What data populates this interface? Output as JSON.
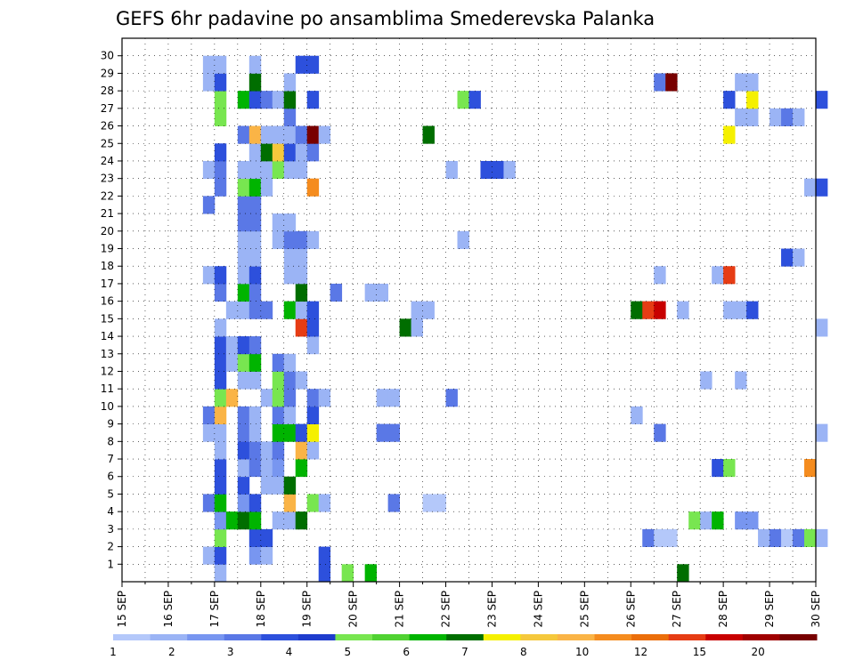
{
  "chart_data": {
    "type": "heatmap",
    "title": "GEFS 6hr padavine po ansamblima Smederevska Palanka",
    "x_labels": [
      "15 SEP",
      "16 SEP",
      "17 SEP",
      "18 SEP",
      "19 SEP",
      "20 SEP",
      "21 SEP",
      "22 SEP",
      "23 SEP",
      "24 SEP",
      "25 SEP",
      "26 SEP",
      "27 SEP",
      "28 SEP",
      "29 SEP",
      "30 SEP"
    ],
    "y_labels": [
      "1",
      "2",
      "3",
      "4",
      "5",
      "6",
      "7",
      "8",
      "9",
      "10",
      "11",
      "12",
      "13",
      "14",
      "15",
      "16",
      "17",
      "18",
      "19",
      "20",
      "21",
      "22",
      "23",
      "24",
      "25",
      "26",
      "27",
      "28",
      "29",
      "30"
    ],
    "color_scale": {
      "thresholds": [
        "1",
        "2",
        "3",
        "4",
        "5",
        "6",
        "7",
        "8",
        "10",
        "12",
        "15",
        "20"
      ],
      "colors": [
        "#b4c8fa",
        "#9bb4f5",
        "#7896f0",
        "#5a78e6",
        "#2d50dc",
        "#1e3ccd",
        "#78e650",
        "#50d232",
        "#00b400",
        "#006e00",
        "#f5f000",
        "#f5c83c",
        "#fab446",
        "#f58c1e",
        "#eb6e0a",
        "#e63c14",
        "#c80000",
        "#a00000",
        "#780000"
      ]
    },
    "grid": true,
    "cells": [
      {
        "ens": 0,
        "x": 8,
        "c": 1
      },
      {
        "ens": 0,
        "x": 17,
        "c": 4
      },
      {
        "ens": 0,
        "x": 19,
        "c": 6
      },
      {
        "ens": 0,
        "x": 21,
        "c": 8
      },
      {
        "ens": 0,
        "x": 48,
        "c": 9
      },
      {
        "ens": 1,
        "x": 7,
        "c": 1
      },
      {
        "ens": 1,
        "x": 8,
        "c": 4
      },
      {
        "ens": 1,
        "x": 11,
        "c": 2
      },
      {
        "ens": 1,
        "x": 12,
        "c": 1
      },
      {
        "ens": 1,
        "x": 17,
        "c": 4
      },
      {
        "ens": 2,
        "x": 8,
        "c": 6
      },
      {
        "ens": 2,
        "x": 11,
        "c": 4
      },
      {
        "ens": 2,
        "x": 12,
        "c": 4
      },
      {
        "ens": 2,
        "x": 45,
        "c": 3
      },
      {
        "ens": 2,
        "x": 46,
        "c": 0
      },
      {
        "ens": 2,
        "x": 47,
        "c": 0
      },
      {
        "ens": 2,
        "x": 55,
        "c": 1
      },
      {
        "ens": 2,
        "x": 56,
        "c": 3
      },
      {
        "ens": 2,
        "x": 57,
        "c": 0
      },
      {
        "ens": 2,
        "x": 58,
        "c": 3
      },
      {
        "ens": 2,
        "x": 59,
        "c": 6
      },
      {
        "ens": 2,
        "x": 60,
        "c": 1
      },
      {
        "ens": 3,
        "x": 8,
        "c": 2
      },
      {
        "ens": 3,
        "x": 9,
        "c": 8
      },
      {
        "ens": 3,
        "x": 10,
        "c": 9
      },
      {
        "ens": 3,
        "x": 11,
        "c": 8
      },
      {
        "ens": 3,
        "x": 13,
        "c": 1
      },
      {
        "ens": 3,
        "x": 14,
        "c": 1
      },
      {
        "ens": 3,
        "x": 15,
        "c": 9
      },
      {
        "ens": 3,
        "x": 49,
        "c": 6
      },
      {
        "ens": 3,
        "x": 50,
        "c": 1
      },
      {
        "ens": 3,
        "x": 51,
        "c": 8
      },
      {
        "ens": 3,
        "x": 53,
        "c": 2
      },
      {
        "ens": 3,
        "x": 54,
        "c": 2
      },
      {
        "ens": 4,
        "x": 7,
        "c": 3
      },
      {
        "ens": 4,
        "x": 8,
        "c": 8
      },
      {
        "ens": 4,
        "x": 10,
        "c": 2
      },
      {
        "ens": 4,
        "x": 11,
        "c": 4
      },
      {
        "ens": 4,
        "x": 14,
        "c": 12
      },
      {
        "ens": 4,
        "x": 16,
        "c": 6
      },
      {
        "ens": 4,
        "x": 17,
        "c": 1
      },
      {
        "ens": 4,
        "x": 23,
        "c": 3
      },
      {
        "ens": 4,
        "x": 26,
        "c": 0
      },
      {
        "ens": 4,
        "x": 27,
        "c": 0
      },
      {
        "ens": 5,
        "x": 8,
        "c": 4
      },
      {
        "ens": 5,
        "x": 10,
        "c": 4
      },
      {
        "ens": 5,
        "x": 12,
        "c": 1
      },
      {
        "ens": 5,
        "x": 13,
        "c": 1
      },
      {
        "ens": 5,
        "x": 14,
        "c": 9
      },
      {
        "ens": 6,
        "x": 8,
        "c": 4
      },
      {
        "ens": 6,
        "x": 10,
        "c": 1
      },
      {
        "ens": 6,
        "x": 11,
        "c": 3
      },
      {
        "ens": 6,
        "x": 12,
        "c": 1
      },
      {
        "ens": 6,
        "x": 13,
        "c": 2
      },
      {
        "ens": 6,
        "x": 15,
        "c": 8
      },
      {
        "ens": 6,
        "x": 51,
        "c": 4
      },
      {
        "ens": 6,
        "x": 52,
        "c": 6
      },
      {
        "ens": 6,
        "x": 59,
        "c": 13
      },
      {
        "ens": 7,
        "x": 8,
        "c": 1
      },
      {
        "ens": 7,
        "x": 10,
        "c": 4
      },
      {
        "ens": 7,
        "x": 11,
        "c": 3
      },
      {
        "ens": 7,
        "x": 12,
        "c": 1
      },
      {
        "ens": 7,
        "x": 13,
        "c": 3
      },
      {
        "ens": 7,
        "x": 15,
        "c": 12
      },
      {
        "ens": 7,
        "x": 16,
        "c": 1
      },
      {
        "ens": 8,
        "x": 7,
        "c": 1
      },
      {
        "ens": 8,
        "x": 8,
        "c": 1
      },
      {
        "ens": 8,
        "x": 10,
        "c": 3
      },
      {
        "ens": 8,
        "x": 11,
        "c": 1
      },
      {
        "ens": 8,
        "x": 13,
        "c": 8
      },
      {
        "ens": 8,
        "x": 14,
        "c": 8
      },
      {
        "ens": 8,
        "x": 15,
        "c": 4
      },
      {
        "ens": 8,
        "x": 16,
        "c": 10
      },
      {
        "ens": 8,
        "x": 22,
        "c": 3
      },
      {
        "ens": 8,
        "x": 23,
        "c": 3
      },
      {
        "ens": 8,
        "x": 46,
        "c": 3
      },
      {
        "ens": 8,
        "x": 60,
        "c": 1
      },
      {
        "ens": 9,
        "x": 7,
        "c": 3
      },
      {
        "ens": 9,
        "x": 8,
        "c": 12
      },
      {
        "ens": 9,
        "x": 10,
        "c": 3
      },
      {
        "ens": 9,
        "x": 11,
        "c": 1
      },
      {
        "ens": 9,
        "x": 13,
        "c": 3
      },
      {
        "ens": 9,
        "x": 14,
        "c": 1
      },
      {
        "ens": 9,
        "x": 16,
        "c": 4
      },
      {
        "ens": 9,
        "x": 44,
        "c": 1
      },
      {
        "ens": 10,
        "x": 8,
        "c": 6
      },
      {
        "ens": 10,
        "x": 9,
        "c": 12
      },
      {
        "ens": 10,
        "x": 12,
        "c": 1
      },
      {
        "ens": 10,
        "x": 13,
        "c": 6
      },
      {
        "ens": 10,
        "x": 14,
        "c": 3
      },
      {
        "ens": 10,
        "x": 16,
        "c": 3
      },
      {
        "ens": 10,
        "x": 17,
        "c": 1
      },
      {
        "ens": 10,
        "x": 22,
        "c": 1
      },
      {
        "ens": 10,
        "x": 23,
        "c": 1
      },
      {
        "ens": 10,
        "x": 28,
        "c": 3
      },
      {
        "ens": 11,
        "x": 8,
        "c": 4
      },
      {
        "ens": 11,
        "x": 10,
        "c": 1
      },
      {
        "ens": 11,
        "x": 11,
        "c": 1
      },
      {
        "ens": 11,
        "x": 13,
        "c": 6
      },
      {
        "ens": 11,
        "x": 14,
        "c": 3
      },
      {
        "ens": 11,
        "x": 15,
        "c": 1
      },
      {
        "ens": 11,
        "x": 50,
        "c": 1
      },
      {
        "ens": 11,
        "x": 53,
        "c": 1
      },
      {
        "ens": 12,
        "x": 8,
        "c": 4
      },
      {
        "ens": 12,
        "x": 9,
        "c": 1
      },
      {
        "ens": 12,
        "x": 10,
        "c": 6
      },
      {
        "ens": 12,
        "x": 11,
        "c": 8
      },
      {
        "ens": 12,
        "x": 13,
        "c": 3
      },
      {
        "ens": 12,
        "x": 14,
        "c": 1
      },
      {
        "ens": 13,
        "x": 8,
        "c": 4
      },
      {
        "ens": 13,
        "x": 9,
        "c": 1
      },
      {
        "ens": 13,
        "x": 10,
        "c": 4
      },
      {
        "ens": 13,
        "x": 11,
        "c": 3
      },
      {
        "ens": 13,
        "x": 16,
        "c": 1
      },
      {
        "ens": 14,
        "x": 8,
        "c": 1
      },
      {
        "ens": 14,
        "x": 15,
        "c": 15
      },
      {
        "ens": 14,
        "x": 16,
        "c": 4
      },
      {
        "ens": 14,
        "x": 24,
        "c": 9
      },
      {
        "ens": 14,
        "x": 25,
        "c": 1
      },
      {
        "ens": 14,
        "x": 60,
        "c": 1
      },
      {
        "ens": 15,
        "x": 9,
        "c": 1
      },
      {
        "ens": 15,
        "x": 10,
        "c": 1
      },
      {
        "ens": 15,
        "x": 11,
        "c": 3
      },
      {
        "ens": 15,
        "x": 12,
        "c": 3
      },
      {
        "ens": 15,
        "x": 14,
        "c": 8
      },
      {
        "ens": 15,
        "x": 15,
        "c": 1
      },
      {
        "ens": 15,
        "x": 16,
        "c": 4
      },
      {
        "ens": 15,
        "x": 25,
        "c": 1
      },
      {
        "ens": 15,
        "x": 26,
        "c": 1
      },
      {
        "ens": 15,
        "x": 44,
        "c": 9
      },
      {
        "ens": 15,
        "x": 45,
        "c": 15
      },
      {
        "ens": 15,
        "x": 46,
        "c": 16
      },
      {
        "ens": 15,
        "x": 48,
        "c": 1
      },
      {
        "ens": 15,
        "x": 52,
        "c": 1
      },
      {
        "ens": 15,
        "x": 53,
        "c": 1
      },
      {
        "ens": 15,
        "x": 54,
        "c": 4
      },
      {
        "ens": 16,
        "x": 8,
        "c": 3
      },
      {
        "ens": 16,
        "x": 10,
        "c": 8
      },
      {
        "ens": 16,
        "x": 11,
        "c": 3
      },
      {
        "ens": 16,
        "x": 15,
        "c": 9
      },
      {
        "ens": 16,
        "x": 18,
        "c": 3
      },
      {
        "ens": 16,
        "x": 21,
        "c": 1
      },
      {
        "ens": 16,
        "x": 22,
        "c": 1
      },
      {
        "ens": 17,
        "x": 7,
        "c": 1
      },
      {
        "ens": 17,
        "x": 8,
        "c": 4
      },
      {
        "ens": 17,
        "x": 10,
        "c": 1
      },
      {
        "ens": 17,
        "x": 11,
        "c": 4
      },
      {
        "ens": 17,
        "x": 14,
        "c": 1
      },
      {
        "ens": 17,
        "x": 15,
        "c": 1
      },
      {
        "ens": 17,
        "x": 46,
        "c": 1
      },
      {
        "ens": 17,
        "x": 51,
        "c": 1
      },
      {
        "ens": 17,
        "x": 52,
        "c": 15
      },
      {
        "ens": 18,
        "x": 10,
        "c": 1
      },
      {
        "ens": 18,
        "x": 11,
        "c": 1
      },
      {
        "ens": 18,
        "x": 14,
        "c": 1
      },
      {
        "ens": 18,
        "x": 15,
        "c": 1
      },
      {
        "ens": 18,
        "x": 57,
        "c": 4
      },
      {
        "ens": 18,
        "x": 58,
        "c": 1
      },
      {
        "ens": 19,
        "x": 10,
        "c": 1
      },
      {
        "ens": 19,
        "x": 11,
        "c": 1
      },
      {
        "ens": 19,
        "x": 13,
        "c": 1
      },
      {
        "ens": 19,
        "x": 14,
        "c": 3
      },
      {
        "ens": 19,
        "x": 15,
        "c": 3
      },
      {
        "ens": 19,
        "x": 16,
        "c": 1
      },
      {
        "ens": 19,
        "x": 29,
        "c": 1
      },
      {
        "ens": 20,
        "x": 10,
        "c": 3
      },
      {
        "ens": 20,
        "x": 11,
        "c": 3
      },
      {
        "ens": 20,
        "x": 13,
        "c": 1
      },
      {
        "ens": 20,
        "x": 14,
        "c": 1
      },
      {
        "ens": 21,
        "x": 7,
        "c": 3
      },
      {
        "ens": 21,
        "x": 10,
        "c": 3
      },
      {
        "ens": 21,
        "x": 11,
        "c": 3
      },
      {
        "ens": 22,
        "x": 8,
        "c": 3
      },
      {
        "ens": 22,
        "x": 10,
        "c": 6
      },
      {
        "ens": 22,
        "x": 11,
        "c": 8
      },
      {
        "ens": 22,
        "x": 12,
        "c": 1
      },
      {
        "ens": 22,
        "x": 16,
        "c": 13
      },
      {
        "ens": 22,
        "x": 59,
        "c": 1
      },
      {
        "ens": 22,
        "x": 60,
        "c": 4
      },
      {
        "ens": 23,
        "x": 7,
        "c": 1
      },
      {
        "ens": 23,
        "x": 8,
        "c": 3
      },
      {
        "ens": 23,
        "x": 10,
        "c": 1
      },
      {
        "ens": 23,
        "x": 11,
        "c": 1
      },
      {
        "ens": 23,
        "x": 12,
        "c": 1
      },
      {
        "ens": 23,
        "x": 13,
        "c": 6
      },
      {
        "ens": 23,
        "x": 14,
        "c": 1
      },
      {
        "ens": 23,
        "x": 15,
        "c": 1
      },
      {
        "ens": 23,
        "x": 28,
        "c": 1
      },
      {
        "ens": 23,
        "x": 31,
        "c": 4
      },
      {
        "ens": 23,
        "x": 32,
        "c": 4
      },
      {
        "ens": 23,
        "x": 33,
        "c": 1
      },
      {
        "ens": 24,
        "x": 8,
        "c": 4
      },
      {
        "ens": 24,
        "x": 11,
        "c": 1
      },
      {
        "ens": 24,
        "x": 12,
        "c": 9
      },
      {
        "ens": 24,
        "x": 13,
        "c": 11
      },
      {
        "ens": 24,
        "x": 14,
        "c": 4
      },
      {
        "ens": 24,
        "x": 15,
        "c": 1
      },
      {
        "ens": 24,
        "x": 16,
        "c": 3
      },
      {
        "ens": 25,
        "x": 10,
        "c": 3
      },
      {
        "ens": 25,
        "x": 11,
        "c": 12
      },
      {
        "ens": 25,
        "x": 12,
        "c": 1
      },
      {
        "ens": 25,
        "x": 13,
        "c": 1
      },
      {
        "ens": 25,
        "x": 14,
        "c": 1
      },
      {
        "ens": 25,
        "x": 15,
        "c": 3
      },
      {
        "ens": 25,
        "x": 16,
        "c": 18
      },
      {
        "ens": 25,
        "x": 17,
        "c": 1
      },
      {
        "ens": 25,
        "x": 26,
        "c": 9
      },
      {
        "ens": 25,
        "x": 52,
        "c": 10
      },
      {
        "ens": 26,
        "x": 8,
        "c": 6
      },
      {
        "ens": 26,
        "x": 14,
        "c": 3
      },
      {
        "ens": 26,
        "x": 53,
        "c": 1
      },
      {
        "ens": 26,
        "x": 54,
        "c": 1
      },
      {
        "ens": 26,
        "x": 56,
        "c": 1
      },
      {
        "ens": 26,
        "x": 57,
        "c": 3
      },
      {
        "ens": 26,
        "x": 58,
        "c": 1
      },
      {
        "ens": 27,
        "x": 8,
        "c": 6
      },
      {
        "ens": 27,
        "x": 10,
        "c": 8
      },
      {
        "ens": 27,
        "x": 11,
        "c": 4
      },
      {
        "ens": 27,
        "x": 12,
        "c": 3
      },
      {
        "ens": 27,
        "x": 13,
        "c": 1
      },
      {
        "ens": 27,
        "x": 14,
        "c": 9
      },
      {
        "ens": 27,
        "x": 16,
        "c": 4
      },
      {
        "ens": 27,
        "x": 29,
        "c": 6
      },
      {
        "ens": 27,
        "x": 30,
        "c": 4
      },
      {
        "ens": 27,
        "x": 52,
        "c": 4
      },
      {
        "ens": 27,
        "x": 54,
        "c": 10
      },
      {
        "ens": 27,
        "x": 60,
        "c": 4
      },
      {
        "ens": 28,
        "x": 7,
        "c": 1
      },
      {
        "ens": 28,
        "x": 8,
        "c": 4
      },
      {
        "ens": 28,
        "x": 11,
        "c": 9
      },
      {
        "ens": 28,
        "x": 14,
        "c": 1
      },
      {
        "ens": 28,
        "x": 53,
        "c": 1
      },
      {
        "ens": 28,
        "x": 54,
        "c": 1
      },
      {
        "ens": 28,
        "x": 46,
        "c": 3
      },
      {
        "ens": 28,
        "x": 47,
        "c": 18
      },
      {
        "ens": 29,
        "x": 7,
        "c": 1
      },
      {
        "ens": 29,
        "x": 8,
        "c": 1
      },
      {
        "ens": 29,
        "x": 11,
        "c": 1
      },
      {
        "ens": 29,
        "x": 15,
        "c": 4
      },
      {
        "ens": 29,
        "x": 16,
        "c": 4
      }
    ]
  }
}
